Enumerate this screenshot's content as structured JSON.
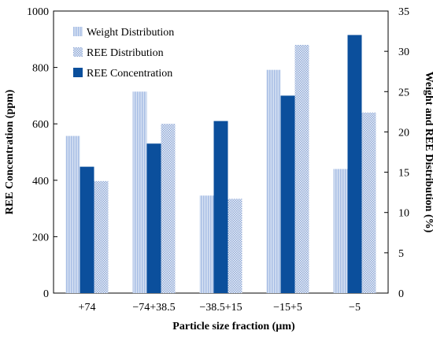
{
  "chart_data": {
    "type": "bar",
    "categories": [
      "+74",
      "−74+38.5",
      "−38.5+15",
      "−15+5",
      "−5"
    ],
    "xlabel": "Particle size fraction (µm)",
    "ylabel_left": "REE Concentration (ppm)",
    "ylabel_right": "Weight and REE Distribution (%)",
    "ylim_left": [
      0,
      1000
    ],
    "yticks_left": [
      0,
      200,
      400,
      600,
      800,
      1000
    ],
    "ylim_right": [
      0,
      35
    ],
    "yticks_right": [
      0,
      5,
      10,
      15,
      20,
      25,
      30,
      35
    ],
    "grid": false,
    "legend_position": "top-left",
    "series": [
      {
        "name": "Weight Distribution",
        "axis": "right",
        "color": "#b4c7e7",
        "pattern": "vertical-lines",
        "values": [
          19.5,
          25.0,
          12.1,
          27.7,
          15.4
        ]
      },
      {
        "name": "REE Distribution",
        "axis": "right",
        "color": "#9db5de",
        "pattern": "dots",
        "values": [
          13.9,
          21.0,
          11.7,
          30.8,
          22.4
        ]
      },
      {
        "name": "REE Concentration",
        "axis": "left",
        "color": "#0b4f9c",
        "pattern": "solid",
        "values": [
          448,
          530,
          610,
          700,
          915
        ]
      }
    ]
  }
}
